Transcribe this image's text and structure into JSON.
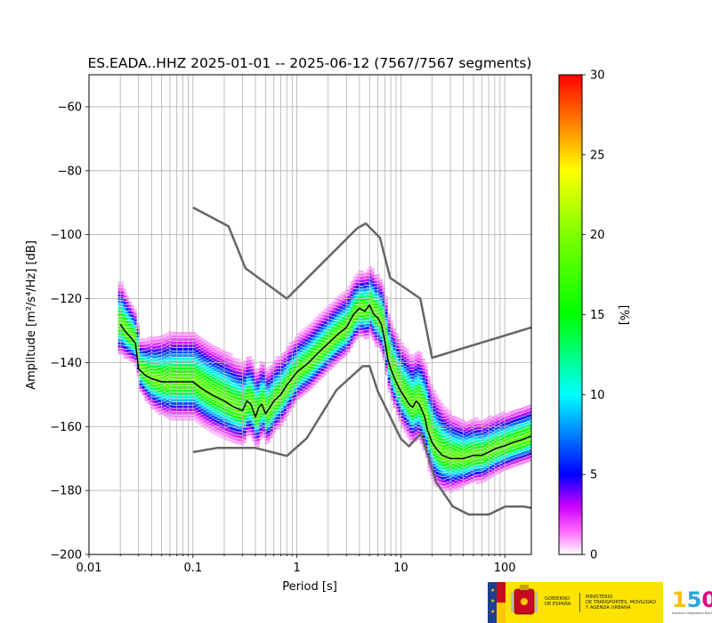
{
  "chart_data": {
    "type": "heatmap",
    "title": "ES.EADA..HHZ   2025-01-01 -- 2025-06-12  (7567/7567 segments)",
    "xlabel": "Period [s]",
    "ylabel": "Amplitude [m²/s⁴/Hz] [dB]",
    "xscale": "log",
    "xlim": [
      0.01,
      180
    ],
    "ylim": [
      -200,
      -50
    ],
    "xticks": [
      {
        "value": 0.01,
        "label": "0.01"
      },
      {
        "value": 0.1,
        "label": "0.1"
      },
      {
        "value": 1,
        "label": "1"
      },
      {
        "value": 10,
        "label": "10"
      },
      {
        "value": 100,
        "label": "100"
      }
    ],
    "yticks": [
      -200,
      -180,
      -160,
      -140,
      -120,
      -100,
      -80,
      -60
    ],
    "grid": true,
    "colorbar": {
      "label": "[%]",
      "min": 0,
      "max": 30,
      "ticks": [
        0,
        5,
        10,
        15,
        20,
        25,
        30
      ]
    },
    "mode_curve": {
      "name": "mode",
      "x": [
        0.02,
        0.022,
        0.025,
        0.028,
        0.03,
        0.035,
        0.04,
        0.05,
        0.06,
        0.08,
        0.1,
        0.12,
        0.15,
        0.2,
        0.25,
        0.3,
        0.33,
        0.36,
        0.4,
        0.43,
        0.46,
        0.5,
        0.55,
        0.6,
        0.7,
        0.8,
        1.0,
        1.3,
        1.6,
        2.0,
        2.5,
        3.0,
        3.5,
        4.0,
        4.5,
        5.0,
        5.5,
        6.0,
        6.5,
        7.0,
        7.5,
        8.0,
        9.0,
        10.0,
        11.0,
        12.0,
        13.0,
        14.0,
        15.0,
        16.0,
        17.0,
        18.0,
        20.0,
        22.0,
        25.0,
        30.0,
        35.0,
        40.0,
        50.0,
        60.0,
        70.0,
        80.0,
        100.0,
        120.0,
        150.0,
        180.0
      ],
      "y": [
        -128,
        -130,
        -132,
        -134,
        -142,
        -144,
        -145,
        -146,
        -146,
        -146,
        -146,
        -148,
        -150,
        -152,
        -154,
        -155,
        -152,
        -153,
        -157,
        -154,
        -153,
        -156,
        -154,
        -152,
        -150,
        -147,
        -143,
        -140,
        -137,
        -134,
        -131,
        -129,
        -125,
        -123,
        -124,
        -122,
        -125,
        -126,
        -128,
        -133,
        -139,
        -142,
        -146,
        -149,
        -151,
        -153,
        -154,
        -152,
        -153,
        -155,
        -157,
        -161,
        -165,
        -167,
        -169,
        -170,
        -170,
        -170,
        -169,
        -169,
        -168,
        -167,
        -166,
        -165,
        -164,
        -163
      ]
    },
    "noise_models": [
      {
        "name": "NHNM",
        "x": [
          0.1,
          0.22,
          0.32,
          0.8,
          3.8,
          4.6,
          6.3,
          7.9,
          15.4,
          20.0,
          180.0
        ],
        "y": [
          -91.5,
          -97.4,
          -110.5,
          -120.0,
          -98.0,
          -96.5,
          -101.0,
          -113.5,
          -120.0,
          -138.5,
          -129
        ]
      },
      {
        "name": "NLNM",
        "x": [
          0.1,
          0.17,
          0.4,
          0.8,
          1.24,
          2.4,
          4.3,
          5.0,
          6.0,
          10.0,
          12.0,
          15.6,
          21.9,
          31.6,
          45.0,
          70.0,
          101.0,
          154.0,
          180.0
        ],
        "y": [
          -168,
          -166.7,
          -166.7,
          -169.2,
          -163.7,
          -148.6,
          -141.1,
          -141.1,
          -149.0,
          -163.8,
          -166.2,
          -162.1,
          -177.5,
          -185.0,
          -187.5,
          -187.5,
          -185.0,
          -185.0,
          -185.5
        ]
      }
    ],
    "psd_density": [
      {
        "x": 0.02,
        "center": -127,
        "halfwidth": 10
      },
      {
        "x": 0.025,
        "center": -132,
        "halfwidth": 8
      },
      {
        "x": 0.03,
        "center": -140,
        "halfwidth": 7
      },
      {
        "x": 0.04,
        "center": -142,
        "halfwidth": 10
      },
      {
        "x": 0.06,
        "center": -142,
        "halfwidth": 12
      },
      {
        "x": 0.1,
        "center": -144,
        "halfwidth": 12
      },
      {
        "x": 0.2,
        "center": -148,
        "halfwidth": 12
      },
      {
        "x": 0.35,
        "center": -151,
        "halfwidth": 11
      },
      {
        "x": 0.6,
        "center": -149,
        "halfwidth": 10
      },
      {
        "x": 1.0,
        "center": -142,
        "halfwidth": 9
      },
      {
        "x": 2.0,
        "center": -134,
        "halfwidth": 9
      },
      {
        "x": 4.0,
        "center": -125,
        "halfwidth": 9
      },
      {
        "x": 6.0,
        "center": -127,
        "halfwidth": 10
      },
      {
        "x": 8.0,
        "center": -139,
        "halfwidth": 11
      },
      {
        "x": 12.0,
        "center": -150,
        "halfwidth": 12
      },
      {
        "x": 20.0,
        "center": -162,
        "halfwidth": 13
      },
      {
        "x": 40.0,
        "center": -168,
        "halfwidth": 9
      },
      {
        "x": 100.0,
        "center": -165,
        "halfwidth": 8
      },
      {
        "x": 180.0,
        "center": -162,
        "halfwidth": 8
      }
    ],
    "colors": {
      "nhnm": "#666666",
      "nlnm": "#666666",
      "mode": "#000000",
      "grid": "#b0b0b0"
    }
  },
  "logos": {
    "gobierno_text": "GOBIERNO\nDE ESPAÑA",
    "ministerio_text": "MINISTERIO\nDE TRANSPORTES, MOVILIDAD\nY AGENDA URBANA",
    "ign_number": "150",
    "ign_text": "Instituto Geográfico Nacional"
  }
}
